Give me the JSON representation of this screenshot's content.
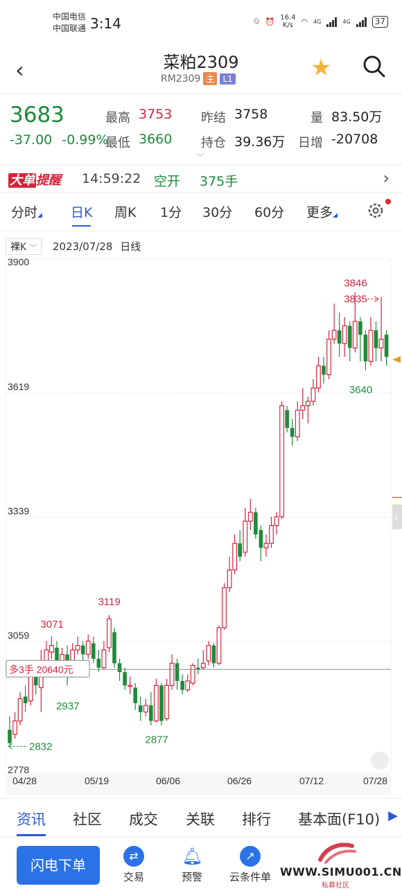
{
  "status_bar": {
    "carrier1": "中国电信",
    "carrier2": "中国联通",
    "time": "3:14",
    "speed_value": "16.4",
    "speed_unit": "K/s",
    "net1": "4G",
    "net2": "4G",
    "battery": "37"
  },
  "header": {
    "title": "菜粕2309",
    "code": "RM2309",
    "tag_main": "主",
    "tag_level": "L1"
  },
  "quote": {
    "price": "3683",
    "change": "-37.00",
    "change_pct": "-0.99%",
    "high_label": "最高",
    "high": "3753",
    "low_label": "最低",
    "low": "3660",
    "prev_settle_label": "昨结",
    "prev_settle": "3758",
    "open_interest_label": "持仓",
    "open_interest": "39.36万",
    "volume_label": "量",
    "volume": "83.50万",
    "daily_increase_label": "日增",
    "daily_increase": "-20708"
  },
  "alert": {
    "logo_part1": "大单",
    "logo_part2": "提醒",
    "time": "14:59:22",
    "action": "空开",
    "quantity": "375手"
  },
  "periods": [
    {
      "label": "分时",
      "active": false
    },
    {
      "label": "日K",
      "active": true
    },
    {
      "label": "周K",
      "active": false
    },
    {
      "label": "1分",
      "active": false
    },
    {
      "label": "30分",
      "active": false
    },
    {
      "label": "60分",
      "active": false
    },
    {
      "label": "更多",
      "active": false
    }
  ],
  "chart_header": {
    "mode": "裸K",
    "date": "2023/07/28",
    "type": "日线"
  },
  "chart_data": {
    "type": "candlestick",
    "y_ticks": [
      3900,
      3619,
      3339,
      3059,
      2778
    ],
    "ylim": [
      2778,
      3900
    ],
    "x_ticks": [
      "04/28",
      "05/19",
      "06/06",
      "06/26",
      "07/12",
      "07/28"
    ],
    "annotations": {
      "high_mark": "3846",
      "recent_high": "3835",
      "low_mark": "2832",
      "recent_low": "3640",
      "peak1": "3071",
      "peak2": "3119",
      "trough1": "2937",
      "trough2": "2877",
      "position": "多3手  20640元"
    },
    "position_price": 2996,
    "candles": [
      [
        2860,
        2830,
        2890,
        2825
      ],
      [
        2850,
        2880,
        2900,
        2840
      ],
      [
        2880,
        2930,
        2945,
        2870
      ],
      [
        2935,
        2920,
        2960,
        2900
      ],
      [
        2925,
        2990,
        3010,
        2915
      ],
      [
        2990,
        2960,
        3010,
        2940
      ],
      [
        2955,
        3010,
        3040,
        2900
      ],
      [
        3010,
        3040,
        3060,
        2990
      ],
      [
        3035,
        3050,
        3071,
        3020
      ],
      [
        3045,
        3010,
        3060,
        3000
      ],
      [
        3010,
        3030,
        3045,
        2990
      ],
      [
        3030,
        2990,
        3050,
        2960
      ],
      [
        2990,
        3040,
        3055,
        2980
      ],
      [
        3040,
        3050,
        3070,
        3030
      ],
      [
        3050,
        3030,
        3060,
        3015
      ],
      [
        3030,
        3060,
        3075,
        3020
      ],
      [
        3055,
        3020,
        3070,
        3010
      ],
      [
        3020,
        3000,
        3040,
        2990
      ],
      [
        3000,
        3040,
        3060,
        2995
      ],
      [
        3045,
        3110,
        3119,
        3035
      ],
      [
        3080,
        3010,
        3090,
        3000
      ],
      [
        3010,
        2990,
        3020,
        2970
      ],
      [
        2990,
        2960,
        3000,
        2950
      ],
      [
        2960,
        2960,
        2980,
        2940
      ],
      [
        2955,
        2920,
        2965,
        2905
      ],
      [
        2915,
        2900,
        2935,
        2880
      ],
      [
        2900,
        2915,
        2930,
        2890
      ],
      [
        2915,
        2880,
        2945,
        2870
      ],
      [
        2880,
        2960,
        2975,
        2877
      ],
      [
        2960,
        2880,
        2965,
        2870
      ],
      [
        2885,
        2960,
        2975,
        2880
      ],
      [
        2960,
        3010,
        3030,
        2950
      ],
      [
        3010,
        2970,
        3020,
        2950
      ],
      [
        2970,
        2950,
        2985,
        2940
      ],
      [
        2950,
        2970,
        2985,
        2945
      ],
      [
        2965,
        3005,
        3010,
        2960
      ],
      [
        3000,
        2995,
        3020,
        2985
      ],
      [
        3000,
        3010,
        3040,
        2995
      ],
      [
        3015,
        3050,
        3060,
        3005
      ],
      [
        3050,
        3010,
        3055,
        3000
      ],
      [
        3010,
        3090,
        3095,
        3005
      ],
      [
        3090,
        3180,
        3190,
        3085
      ],
      [
        3180,
        3220,
        3250,
        3170
      ],
      [
        3220,
        3280,
        3300,
        3210
      ],
      [
        3280,
        3250,
        3310,
        3240
      ],
      [
        3260,
        3330,
        3360,
        3250
      ],
      [
        3330,
        3350,
        3380,
        3310
      ],
      [
        3350,
        3300,
        3360,
        3290
      ],
      [
        3310,
        3270,
        3320,
        3240
      ],
      [
        3270,
        3280,
        3300,
        3250
      ],
      [
        3280,
        3320,
        3340,
        3270
      ],
      [
        3320,
        3340,
        3350,
        3300
      ],
      [
        3340,
        3590,
        3600,
        3335
      ],
      [
        3580,
        3540,
        3590,
        3530
      ],
      [
        3540,
        3520,
        3560,
        3500
      ],
      [
        3520,
        3580,
        3600,
        3510
      ],
      [
        3580,
        3590,
        3630,
        3560
      ],
      [
        3590,
        3600,
        3610,
        3550
      ],
      [
        3600,
        3630,
        3650,
        3590
      ],
      [
        3630,
        3680,
        3700,
        3620
      ],
      [
        3680,
        3660,
        3700,
        3640
      ],
      [
        3660,
        3740,
        3760,
        3650
      ],
      [
        3740,
        3760,
        3820,
        3730
      ],
      [
        3760,
        3730,
        3800,
        3700
      ],
      [
        3730,
        3770,
        3790,
        3700
      ],
      [
        3770,
        3720,
        3780,
        3690
      ],
      [
        3720,
        3780,
        3846,
        3710
      ],
      [
        3780,
        3750,
        3790,
        3690
      ],
      [
        3750,
        3690,
        3760,
        3670
      ],
      [
        3690,
        3760,
        3790,
        3680
      ],
      [
        3760,
        3720,
        3780,
        3690
      ],
      [
        3720,
        3740,
        3835,
        3690
      ],
      [
        3750,
        3700,
        3760,
        3680
      ]
    ]
  },
  "bottom_tabs": [
    {
      "label": "资讯",
      "active": true
    },
    {
      "label": "社区",
      "active": false
    },
    {
      "label": "成交",
      "active": false
    },
    {
      "label": "关联",
      "active": false
    },
    {
      "label": "排行",
      "active": false
    },
    {
      "label": "基本面(F10)",
      "active": false
    }
  ],
  "bottom_bar": {
    "flash_order": "闪电下单",
    "trade": "交易",
    "alert": "预警",
    "cloud_order": "云条件单",
    "watermark": "WWW.SIMU001.CN",
    "watermark_sub": "私募社区"
  },
  "colors": {
    "up": "#d6233c",
    "down": "#1f8a3c",
    "accent": "#2a58d6",
    "star": "#f6b33a"
  }
}
